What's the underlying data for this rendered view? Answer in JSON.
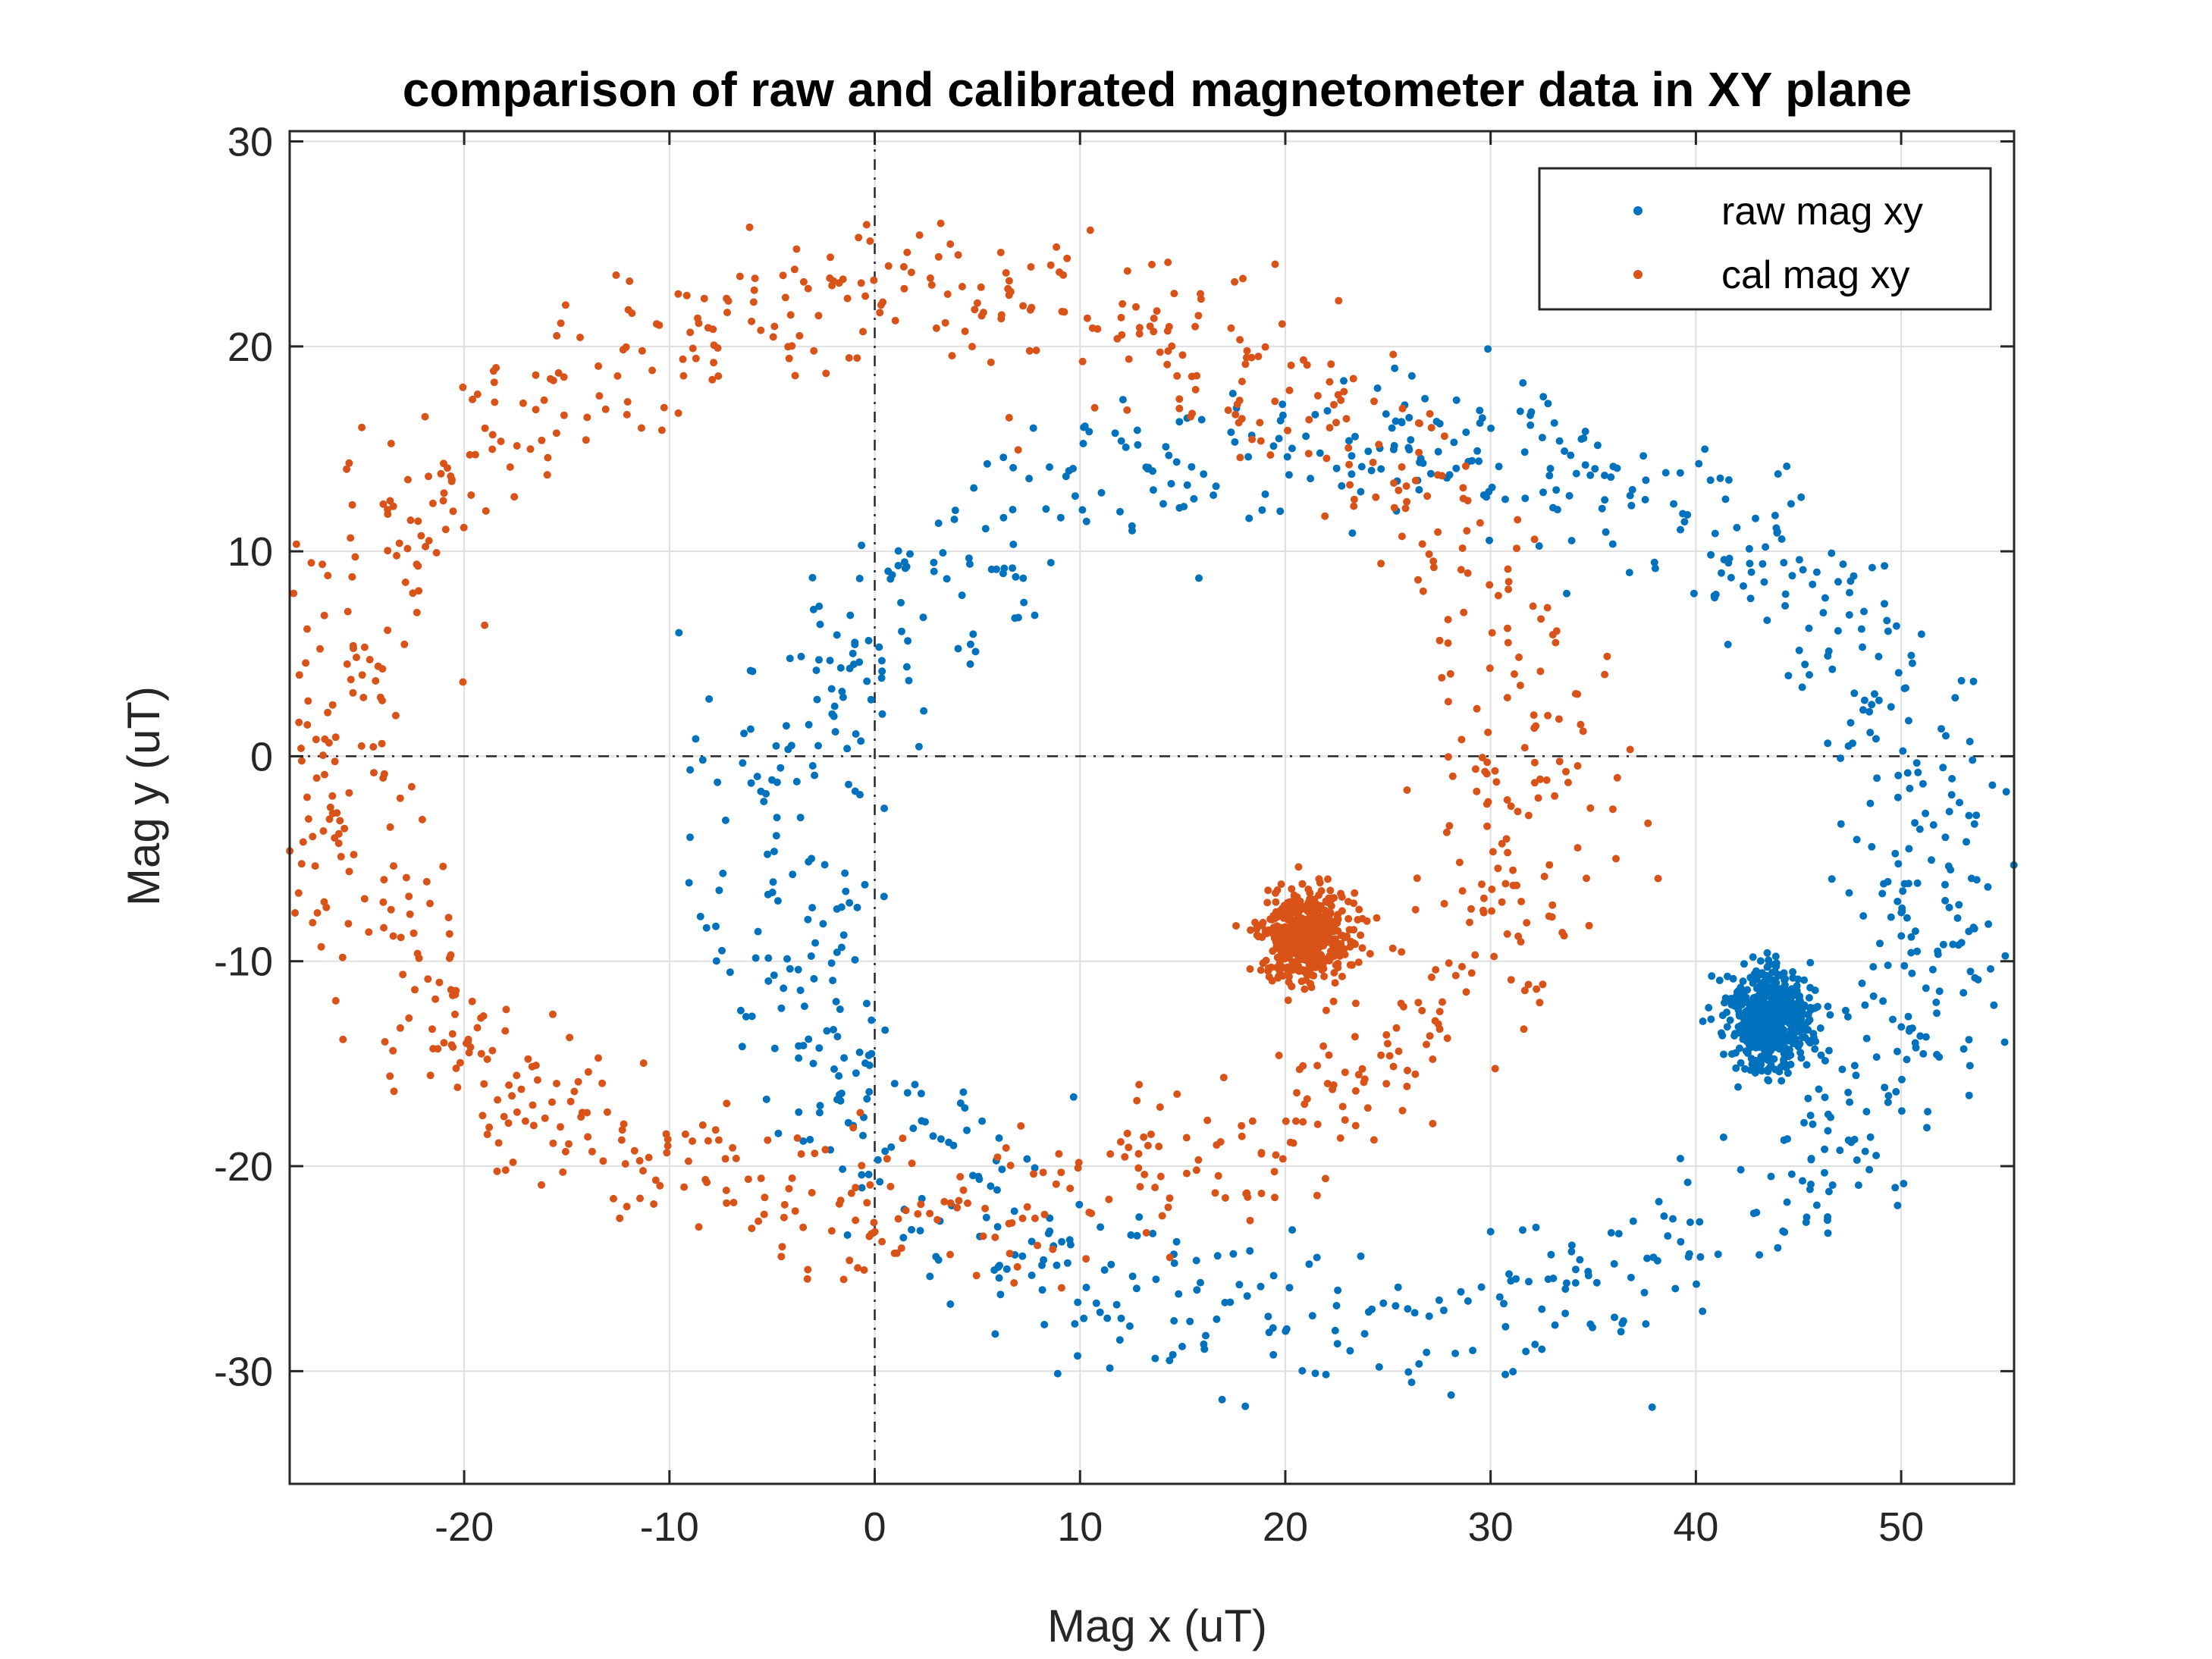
{
  "chart_data": {
    "type": "scatter",
    "title": "comparison of raw and calibrated magnetometer data in XY plane",
    "xlabel": "Mag x (uT)",
    "ylabel": "Mag y (uT)",
    "xlim": [
      -28.5,
      55.5
    ],
    "ylim": [
      -35.5,
      30.5
    ],
    "xticks": [
      -20,
      -10,
      0,
      10,
      20,
      30,
      40,
      50
    ],
    "yticks": [
      -30,
      -20,
      -10,
      0,
      10,
      20,
      30
    ],
    "grid": true,
    "zero_lines": {
      "x": 0,
      "y": 0,
      "style": "dash-dot"
    },
    "legend_position": "top-right",
    "series": [
      {
        "name": "raw mag xy",
        "color": "#0072BD",
        "ring": {
          "center": [
            23.5,
            -6
          ],
          "radius_x": 28.5,
          "radius_y": 21.5,
          "spread": 2.2
        },
        "cluster": {
          "center": [
            43.7,
            -12.8
          ],
          "spread": 1.0
        },
        "approx_points": 1500
      },
      {
        "name": "cal mag xy",
        "color": "#D95319",
        "ring": {
          "center": [
            2.5,
            0
          ],
          "radius_x": 29.5,
          "radius_y": 22.5,
          "spread": 2.2
        },
        "cluster": {
          "center": [
            21.0,
            -8.8
          ],
          "spread": 1.0
        },
        "approx_points": 1500
      }
    ]
  }
}
